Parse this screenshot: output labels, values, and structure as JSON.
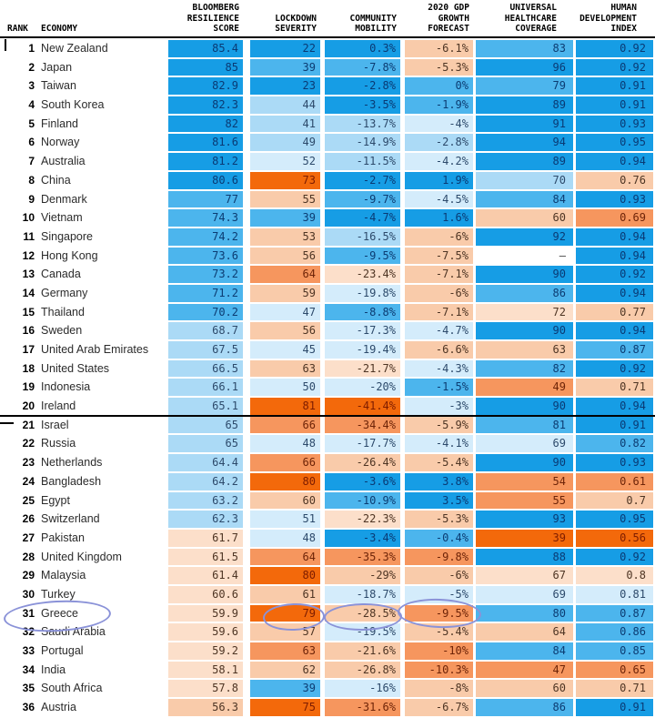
{
  "header": {
    "rank_label": "RANK",
    "economy_label": "ECONOMY",
    "col_labels": [
      "BLOOMBERG\nRESILIENCE\nSCORE",
      "LOCKDOWN\nSEVERITY",
      "COMMUNITY\nMOBILITY",
      "2020 GDP\nGROWTH\nFORECAST",
      "UNIVERSAL\nHEALTHCARE\nCOVERAGE",
      "HUMAN\nDEVELOPMENT\nINDEX"
    ]
  },
  "palette": {
    "b3": "#169de5",
    "b2": "#4cb5ed",
    "b1": "#abdaf6",
    "b0": "#d4ecfb",
    "w": "#ffffff",
    "o0": "#fcdfca",
    "o1": "#f9cbaa",
    "o2": "#f6965e",
    "o3": "#f3690b"
  },
  "text_colors": {
    "b3": "#0a3a74",
    "b2": "#0c3c72",
    "b1": "#2d4a6b",
    "b0": "#2d4a6b",
    "w": "#444444",
    "o0": "#4e3524",
    "o1": "#4e3524",
    "o2": "#6e2408",
    "o3": "#7d1c00"
  },
  "divider_after_rank": "20",
  "annotations": {
    "ink_color": "#8a92d8",
    "circled_row_rank": "31",
    "circled_columns": [
      "economy",
      "lockdown",
      "mobility",
      "gdp"
    ]
  },
  "chart_data": {
    "type": "table",
    "title": "Covid resilience ranking heatmap",
    "columns": [
      "Rank",
      "Economy",
      "Bloomberg Resilience Score",
      "Lockdown Severity",
      "Community Mobility",
      "2020 GDP Growth Forecast",
      "Universal Healthcare Coverage",
      "Human Development Index"
    ],
    "column_keys": [
      "score",
      "lockdown",
      "mobility",
      "gdp",
      "healthcare",
      "hdi"
    ],
    "rows": [
      {
        "rank": "1",
        "economy": "New Zealand",
        "values": [
          "85.4",
          "22",
          "0.3%",
          "-6.1%",
          "83",
          "0.92"
        ],
        "colors": [
          "b3",
          "b3",
          "b3",
          "o1",
          "b2",
          "b3"
        ]
      },
      {
        "rank": "2",
        "economy": "Japan",
        "values": [
          "85",
          "39",
          "-7.8%",
          "-5.3%",
          "96",
          "0.92"
        ],
        "colors": [
          "b3",
          "b2",
          "b2",
          "o1",
          "b3",
          "b3"
        ]
      },
      {
        "rank": "3",
        "economy": "Taiwan",
        "values": [
          "82.9",
          "23",
          "-2.8%",
          "0%",
          "79",
          "0.91"
        ],
        "colors": [
          "b3",
          "b3",
          "b3",
          "b2",
          "b2",
          "b3"
        ]
      },
      {
        "rank": "4",
        "economy": "South Korea",
        "values": [
          "82.3",
          "44",
          "-3.5%",
          "-1.9%",
          "89",
          "0.91"
        ],
        "colors": [
          "b3",
          "b1",
          "b3",
          "b2",
          "b3",
          "b3"
        ]
      },
      {
        "rank": "5",
        "economy": "Finland",
        "values": [
          "82",
          "41",
          "-13.7%",
          "-4%",
          "91",
          "0.93"
        ],
        "colors": [
          "b3",
          "b1",
          "b1",
          "b0",
          "b3",
          "b3"
        ]
      },
      {
        "rank": "6",
        "economy": "Norway",
        "values": [
          "81.6",
          "49",
          "-14.9%",
          "-2.8%",
          "94",
          "0.95"
        ],
        "colors": [
          "b3",
          "b1",
          "b1",
          "b1",
          "b3",
          "b3"
        ]
      },
      {
        "rank": "7",
        "economy": "Australia",
        "values": [
          "81.2",
          "52",
          "-11.5%",
          "-4.2%",
          "89",
          "0.94"
        ],
        "colors": [
          "b3",
          "b0",
          "b1",
          "b0",
          "b3",
          "b3"
        ]
      },
      {
        "rank": "8",
        "economy": "China",
        "values": [
          "80.6",
          "73",
          "-2.7%",
          "1.9%",
          "70",
          "0.76"
        ],
        "colors": [
          "b3",
          "o3",
          "b3",
          "b3",
          "b1",
          "o1"
        ]
      },
      {
        "rank": "9",
        "economy": "Denmark",
        "values": [
          "77",
          "55",
          "-9.7%",
          "-4.5%",
          "84",
          "0.93"
        ],
        "colors": [
          "b2",
          "o1",
          "b2",
          "b0",
          "b2",
          "b3"
        ]
      },
      {
        "rank": "10",
        "economy": "Vietnam",
        "values": [
          "74.3",
          "39",
          "-4.7%",
          "1.6%",
          "60",
          "0.69"
        ],
        "colors": [
          "b2",
          "b2",
          "b3",
          "b3",
          "o1",
          "o2"
        ]
      },
      {
        "rank": "11",
        "economy": "Singapore",
        "values": [
          "74.2",
          "53",
          "-16.5%",
          "-6%",
          "92",
          "0.94"
        ],
        "colors": [
          "b2",
          "o1",
          "b1",
          "o1",
          "b3",
          "b3"
        ]
      },
      {
        "rank": "12",
        "economy": "Hong Kong",
        "values": [
          "73.6",
          "56",
          "-9.5%",
          "-7.5%",
          "–",
          "0.94"
        ],
        "colors": [
          "b2",
          "o1",
          "b2",
          "o1",
          "w",
          "b3"
        ]
      },
      {
        "rank": "13",
        "economy": "Canada",
        "values": [
          "73.2",
          "64",
          "-23.4%",
          "-7.1%",
          "90",
          "0.92"
        ],
        "colors": [
          "b2",
          "o2",
          "o0",
          "o1",
          "b3",
          "b3"
        ]
      },
      {
        "rank": "14",
        "economy": "Germany",
        "values": [
          "71.2",
          "59",
          "-19.8%",
          "-6%",
          "86",
          "0.94"
        ],
        "colors": [
          "b2",
          "o1",
          "b0",
          "o1",
          "b2",
          "b3"
        ]
      },
      {
        "rank": "15",
        "economy": "Thailand",
        "values": [
          "70.2",
          "47",
          "-8.8%",
          "-7.1%",
          "72",
          "0.77"
        ],
        "colors": [
          "b2",
          "b0",
          "b2",
          "o1",
          "o0",
          "o1"
        ]
      },
      {
        "rank": "16",
        "economy": "Sweden",
        "values": [
          "68.7",
          "56",
          "-17.3%",
          "-4.7%",
          "90",
          "0.94"
        ],
        "colors": [
          "b1",
          "o1",
          "b0",
          "b0",
          "b3",
          "b3"
        ]
      },
      {
        "rank": "17",
        "economy": "United Arab Emirates",
        "values": [
          "67.5",
          "45",
          "-19.4%",
          "-6.6%",
          "63",
          "0.87"
        ],
        "colors": [
          "b1",
          "b0",
          "b0",
          "o1",
          "o1",
          "b2"
        ]
      },
      {
        "rank": "18",
        "economy": "United States",
        "values": [
          "66.5",
          "63",
          "-21.7%",
          "-4.3%",
          "82",
          "0.92"
        ],
        "colors": [
          "b1",
          "o1",
          "o0",
          "b0",
          "b2",
          "b3"
        ]
      },
      {
        "rank": "19",
        "economy": "Indonesia",
        "values": [
          "66.1",
          "50",
          "-20%",
          "-1.5%",
          "49",
          "0.71"
        ],
        "colors": [
          "b1",
          "b0",
          "b0",
          "b2",
          "o2",
          "o1"
        ]
      },
      {
        "rank": "20",
        "economy": "Ireland",
        "values": [
          "65.1",
          "81",
          "-41.4%",
          "-3%",
          "90",
          "0.94"
        ],
        "colors": [
          "b1",
          "o3",
          "o3",
          "b0",
          "b3",
          "b3"
        ]
      },
      {
        "rank": "21",
        "economy": "Israel",
        "values": [
          "65",
          "66",
          "-34.4%",
          "-5.9%",
          "81",
          "0.91"
        ],
        "colors": [
          "b1",
          "o2",
          "o2",
          "o1",
          "b2",
          "b3"
        ]
      },
      {
        "rank": "22",
        "economy": "Russia",
        "values": [
          "65",
          "48",
          "-17.7%",
          "-4.1%",
          "69",
          "0.82"
        ],
        "colors": [
          "b1",
          "b0",
          "b0",
          "b0",
          "b0",
          "b2"
        ]
      },
      {
        "rank": "23",
        "economy": "Netherlands",
        "values": [
          "64.4",
          "66",
          "-26.4%",
          "-5.4%",
          "90",
          "0.93"
        ],
        "colors": [
          "b1",
          "o2",
          "o1",
          "o1",
          "b3",
          "b3"
        ]
      },
      {
        "rank": "24",
        "economy": "Bangladesh",
        "values": [
          "64.2",
          "80",
          "-3.6%",
          "3.8%",
          "54",
          "0.61"
        ],
        "colors": [
          "b1",
          "o3",
          "b3",
          "b3",
          "o2",
          "o2"
        ]
      },
      {
        "rank": "25",
        "economy": "Egypt",
        "values": [
          "63.2",
          "60",
          "-10.9%",
          "3.5%",
          "55",
          "0.7"
        ],
        "colors": [
          "b1",
          "o1",
          "b2",
          "b3",
          "o2",
          "o1"
        ]
      },
      {
        "rank": "26",
        "economy": "Switzerland",
        "values": [
          "62.3",
          "51",
          "-22.3%",
          "-5.3%",
          "93",
          "0.95"
        ],
        "colors": [
          "b1",
          "b0",
          "o0",
          "o1",
          "b3",
          "b3"
        ]
      },
      {
        "rank": "27",
        "economy": "Pakistan",
        "values": [
          "61.7",
          "48",
          "-3.4%",
          "-0.4%",
          "39",
          "0.56"
        ],
        "colors": [
          "o0",
          "b0",
          "b3",
          "b2",
          "o3",
          "o3"
        ]
      },
      {
        "rank": "28",
        "economy": "United Kingdom",
        "values": [
          "61.5",
          "64",
          "-35.3%",
          "-9.8%",
          "88",
          "0.92"
        ],
        "colors": [
          "o0",
          "o2",
          "o2",
          "o2",
          "b3",
          "b3"
        ]
      },
      {
        "rank": "29",
        "economy": "Malaysia",
        "values": [
          "61.4",
          "80",
          "-29%",
          "-6%",
          "67",
          "0.8"
        ],
        "colors": [
          "o0",
          "o3",
          "o1",
          "o1",
          "o0",
          "o0"
        ]
      },
      {
        "rank": "30",
        "economy": "Turkey",
        "values": [
          "60.6",
          "61",
          "-18.7%",
          "-5%",
          "69",
          "0.81"
        ],
        "colors": [
          "o0",
          "o1",
          "b0",
          "b0",
          "b0",
          "b0"
        ]
      },
      {
        "rank": "31",
        "economy": "Greece",
        "values": [
          "59.9",
          "79",
          "-28.5%",
          "-9.5%",
          "80",
          "0.87"
        ],
        "colors": [
          "o0",
          "o3",
          "o1",
          "o2",
          "b2",
          "b2"
        ]
      },
      {
        "rank": "32",
        "economy": "Saudi Arabia",
        "values": [
          "59.6",
          "57",
          "-19.5%",
          "-5.4%",
          "64",
          "0.86"
        ],
        "colors": [
          "o0",
          "o1",
          "b0",
          "o1",
          "o1",
          "b2"
        ]
      },
      {
        "rank": "33",
        "economy": "Portugal",
        "values": [
          "59.2",
          "63",
          "-21.6%",
          "-10%",
          "84",
          "0.85"
        ],
        "colors": [
          "o0",
          "o2",
          "o1",
          "o2",
          "b2",
          "b2"
        ]
      },
      {
        "rank": "34",
        "economy": "India",
        "values": [
          "58.1",
          "62",
          "-26.8%",
          "-10.3%",
          "47",
          "0.65"
        ],
        "colors": [
          "o0",
          "o1",
          "o1",
          "o2",
          "o2",
          "o2"
        ]
      },
      {
        "rank": "35",
        "economy": "South Africa",
        "values": [
          "57.8",
          "39",
          "-16%",
          "-8%",
          "60",
          "0.71"
        ],
        "colors": [
          "o0",
          "b2",
          "b0",
          "o1",
          "o1",
          "o1"
        ]
      },
      {
        "rank": "36",
        "economy": "Austria",
        "values": [
          "56.3",
          "75",
          "-31.6%",
          "-6.7%",
          "86",
          "0.91"
        ],
        "colors": [
          "o1",
          "o3",
          "o2",
          "o1",
          "b2",
          "b3"
        ]
      }
    ]
  }
}
